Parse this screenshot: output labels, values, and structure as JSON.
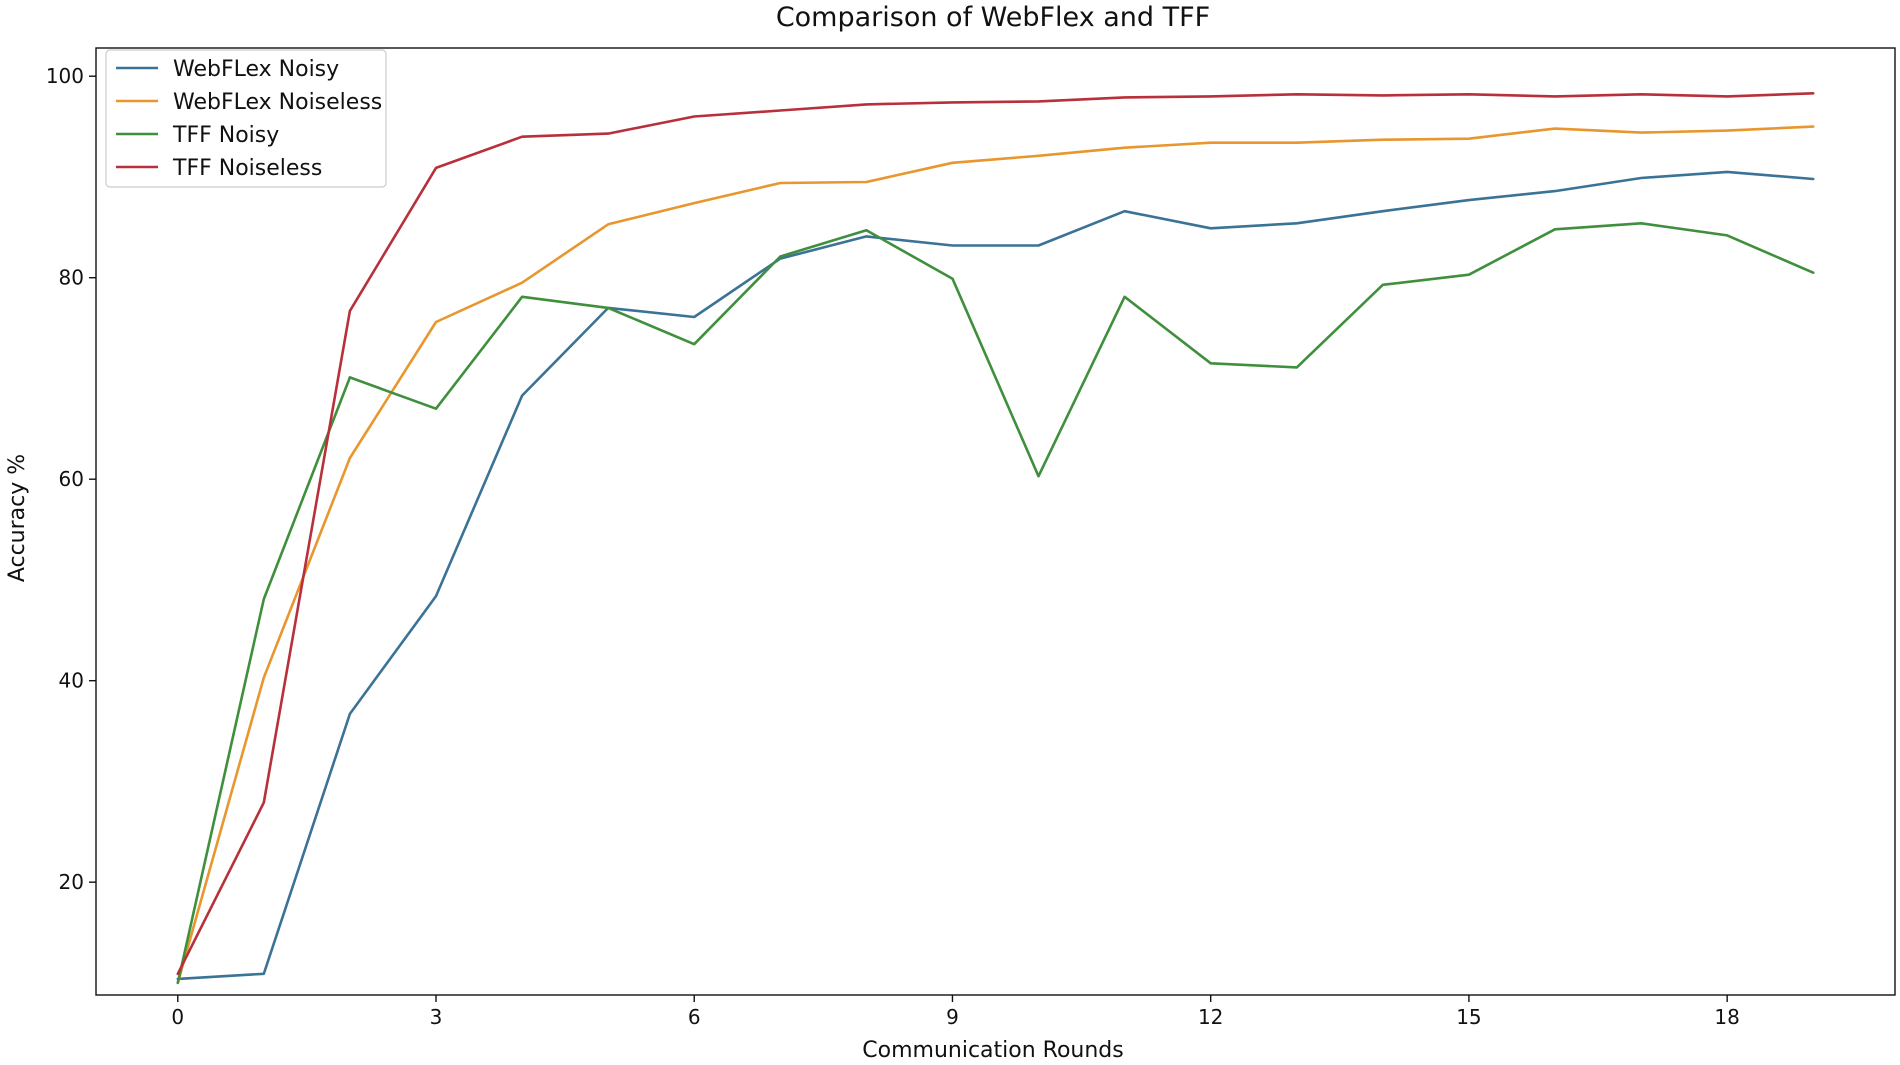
{
  "chart_data": {
    "type": "line",
    "title": "Comparison of WebFlex and TFF",
    "xlabel": "Communication Rounds",
    "ylabel": "Accuracy %",
    "xlim": [
      -0.95,
      19.95
    ],
    "ylim": [
      8.8,
      102.8
    ],
    "xticks": [
      0,
      3,
      6,
      9,
      12,
      15,
      18
    ],
    "yticks": [
      20,
      40,
      60,
      80,
      100
    ],
    "legend_position": "top-left",
    "x": [
      0,
      1,
      2,
      3,
      4,
      5,
      6,
      7,
      8,
      9,
      10,
      11,
      12,
      13,
      14,
      15,
      16,
      17,
      18,
      19
    ],
    "series": [
      {
        "name": "WebFLex Noisy",
        "color": "#3a7396",
        "values": [
          10.4,
          10.9,
          36.7,
          48.4,
          68.3,
          77.0,
          76.1,
          81.9,
          84.1,
          83.2,
          83.2,
          86.6,
          84.9,
          85.4,
          86.6,
          87.7,
          88.6,
          89.9,
          90.5,
          89.8
        ]
      },
      {
        "name": "WebFLex Noiseless",
        "color": "#e8962e",
        "values": [
          10.0,
          40.3,
          62.1,
          75.6,
          79.5,
          85.3,
          87.4,
          89.4,
          89.5,
          91.4,
          92.1,
          92.9,
          93.4,
          93.4,
          93.7,
          93.8,
          94.8,
          94.4,
          94.6,
          95.0
        ]
      },
      {
        "name": "TFF Noisy",
        "color": "#3f8f3c",
        "values": [
          10.0,
          48.1,
          70.1,
          67.0,
          78.1,
          77.0,
          73.4,
          82.1,
          84.7,
          79.9,
          60.3,
          78.1,
          71.5,
          71.1,
          79.3,
          80.3,
          84.8,
          85.4,
          84.2,
          80.5
        ]
      },
      {
        "name": "TFF Noiseless",
        "color": "#b7303a",
        "values": [
          10.9,
          27.9,
          76.7,
          90.9,
          94.0,
          94.3,
          96.0,
          96.6,
          97.2,
          97.4,
          97.5,
          97.9,
          98.0,
          98.2,
          98.1,
          98.2,
          98.0,
          98.2,
          98.0,
          98.3
        ]
      }
    ]
  }
}
